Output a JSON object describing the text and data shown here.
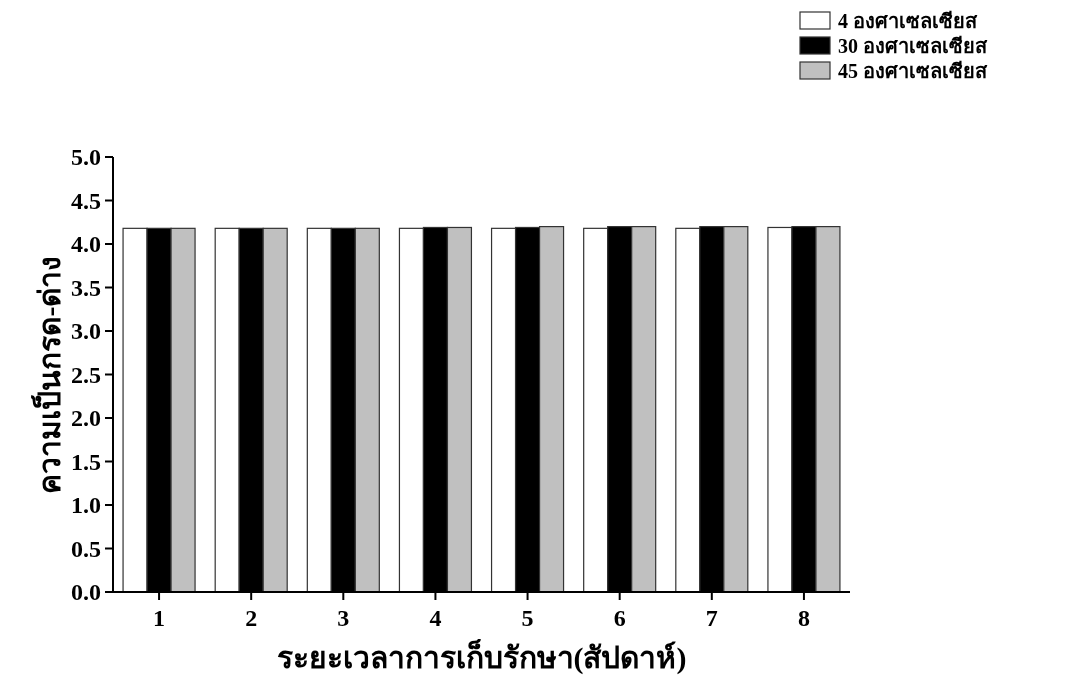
{
  "chart_data": {
    "type": "bar",
    "xlabel": "ระยะเวลาการเก็บรักษา(สัปดาห์)",
    "ylabel": "ความเป็นกรด-ด่าง",
    "categories": [
      "1",
      "2",
      "3",
      "4",
      "5",
      "6",
      "7",
      "8"
    ],
    "series": [
      {
        "name": "4  องศาเซลเซียส",
        "color": "#ffffff",
        "values": [
          4.18,
          4.18,
          4.18,
          4.18,
          4.18,
          4.18,
          4.18,
          4.19
        ]
      },
      {
        "name": "30 องศาเซลเซียส",
        "color": "#000000",
        "values": [
          4.18,
          4.18,
          4.18,
          4.19,
          4.19,
          4.2,
          4.2,
          4.2
        ]
      },
      {
        "name": "45 องศาเซลเซียส",
        "color": "#c0c0c0",
        "values": [
          4.18,
          4.18,
          4.18,
          4.19,
          4.2,
          4.2,
          4.2,
          4.2
        ]
      }
    ],
    "ylim": [
      0,
      5
    ],
    "yticks": [
      {
        "value": 0,
        "label": "0.0"
      },
      0.5,
      {
        "value": 1,
        "label": "1.0"
      },
      1.5,
      {
        "value": 2,
        "label": "2.0"
      },
      2.5,
      {
        "value": 3,
        "label": "3.0"
      },
      3.5,
      {
        "value": 4,
        "label": "4.0"
      },
      4.5,
      {
        "value": 5,
        "label": "5.0"
      }
    ],
    "legend": "top right"
  }
}
